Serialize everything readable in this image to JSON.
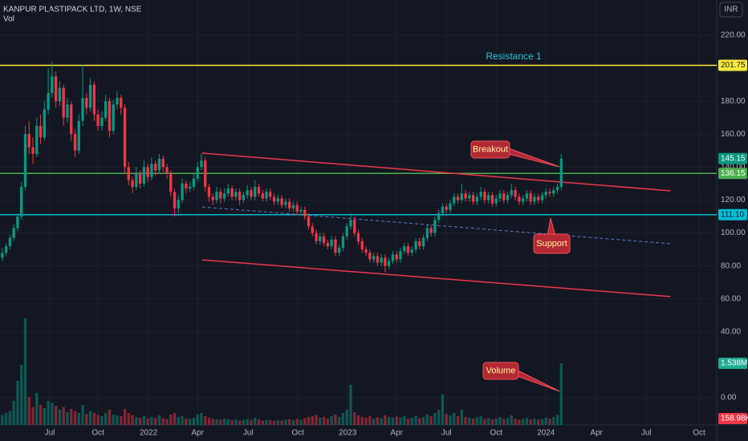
{
  "header": {
    "symbol": "KANPUR PLASTIPACK LTD, 1W, NSE",
    "indicator": "Vol",
    "currency": "INR"
  },
  "chart_data": {
    "type": "candlestick",
    "up_color": "#089981",
    "down_color": "#f23645",
    "ohlc": [
      [
        85,
        91,
        83,
        88
      ],
      [
        88,
        94,
        86,
        92
      ],
      [
        92,
        99,
        90,
        97
      ],
      [
        97,
        105,
        95,
        103
      ],
      [
        103,
        112,
        101,
        110
      ],
      [
        110,
        131,
        108,
        128
      ],
      [
        128,
        165,
        126,
        160
      ],
      [
        160,
        168,
        148,
        152
      ],
      [
        152,
        158,
        142,
        148
      ],
      [
        148,
        170,
        146,
        165
      ],
      [
        165,
        172,
        154,
        158
      ],
      [
        158,
        180,
        156,
        175
      ],
      [
        175,
        200,
        172,
        185
      ],
      [
        185,
        204,
        182,
        195
      ],
      [
        195,
        198,
        176,
        180
      ],
      [
        180,
        192,
        177,
        188
      ],
      [
        188,
        190,
        165,
        170
      ],
      [
        170,
        182,
        167,
        178
      ],
      [
        178,
        180,
        156,
        160
      ],
      [
        160,
        163,
        146,
        150
      ],
      [
        150,
        172,
        148,
        168
      ],
      [
        168,
        202,
        165,
        182
      ],
      [
        182,
        185,
        172,
        176
      ],
      [
        176,
        194,
        174,
        190
      ],
      [
        190,
        192,
        168,
        172
      ],
      [
        172,
        175,
        162,
        165
      ],
      [
        165,
        174,
        162,
        170
      ],
      [
        170,
        184,
        168,
        180
      ],
      [
        180,
        182,
        158,
        162
      ],
      [
        162,
        181,
        160,
        178
      ],
      [
        178,
        186,
        175,
        182
      ],
      [
        182,
        184,
        172,
        176
      ],
      [
        176,
        178,
        136,
        140
      ],
      [
        140,
        143,
        129,
        132
      ],
      [
        132,
        134,
        124,
        128
      ],
      [
        128,
        140,
        126,
        136
      ],
      [
        136,
        138,
        127,
        130
      ],
      [
        130,
        144,
        128,
        140
      ],
      [
        140,
        142,
        131,
        134
      ],
      [
        134,
        146,
        132,
        142
      ],
      [
        142,
        144,
        135,
        138
      ],
      [
        138,
        148,
        136,
        145
      ],
      [
        145,
        147,
        137,
        140
      ],
      [
        140,
        142,
        133,
        136
      ],
      [
        136,
        138,
        122,
        125
      ],
      [
        125,
        127,
        110,
        115
      ],
      [
        115,
        123,
        112,
        120
      ],
      [
        120,
        133,
        118,
        130
      ],
      [
        130,
        132,
        124,
        127
      ],
      [
        127,
        131,
        125,
        128
      ],
      [
        128,
        136,
        126,
        133
      ],
      [
        133,
        143,
        131,
        140
      ],
      [
        140,
        148,
        138,
        144
      ],
      [
        144,
        146,
        125,
        128
      ],
      [
        128,
        130,
        119,
        122
      ],
      [
        122,
        124,
        117,
        120
      ],
      [
        120,
        128,
        118,
        125
      ],
      [
        125,
        127,
        118,
        121
      ],
      [
        121,
        127,
        119,
        124
      ],
      [
        124,
        130,
        122,
        127
      ],
      [
        127,
        129,
        120,
        122
      ],
      [
        122,
        127,
        120,
        125
      ],
      [
        125,
        127,
        117,
        120
      ],
      [
        120,
        125,
        118,
        123
      ],
      [
        123,
        129,
        121,
        126
      ],
      [
        126,
        128,
        120,
        122
      ],
      [
        122,
        132,
        120,
        128
      ],
      [
        128,
        130,
        122,
        124
      ],
      [
        124,
        126,
        119,
        121
      ],
      [
        121,
        127,
        119,
        125
      ],
      [
        125,
        127,
        120,
        122
      ],
      [
        122,
        124,
        117,
        119
      ],
      [
        119,
        123,
        117,
        121
      ],
      [
        121,
        123,
        115,
        117
      ],
      [
        117,
        121,
        115,
        119
      ],
      [
        119,
        121,
        113,
        115
      ],
      [
        115,
        119,
        113,
        117
      ],
      [
        117,
        119,
        111,
        113
      ],
      [
        113,
        116,
        111,
        114
      ],
      [
        114,
        116,
        108,
        110
      ],
      [
        110,
        112,
        102,
        104
      ],
      [
        104,
        106,
        98,
        100
      ],
      [
        100,
        102,
        93,
        95
      ],
      [
        95,
        100,
        93,
        98
      ],
      [
        98,
        100,
        92,
        94
      ],
      [
        94,
        96,
        90,
        92
      ],
      [
        92,
        98,
        90,
        96
      ],
      [
        96,
        98,
        86,
        88
      ],
      [
        88,
        93,
        86,
        91
      ],
      [
        91,
        100,
        89,
        98
      ],
      [
        98,
        106,
        96,
        104
      ],
      [
        104,
        112,
        102,
        108
      ],
      [
        108,
        110,
        98,
        100
      ],
      [
        100,
        102,
        93,
        95
      ],
      [
        95,
        97,
        88,
        90
      ],
      [
        90,
        92,
        86,
        88
      ],
      [
        88,
        90,
        82,
        84
      ],
      [
        84,
        88,
        82,
        86
      ],
      [
        86,
        88,
        80,
        82
      ],
      [
        82,
        87,
        80,
        85
      ],
      [
        85,
        87,
        76,
        80
      ],
      [
        80,
        85,
        78,
        83
      ],
      [
        83,
        89,
        81,
        87
      ],
      [
        87,
        89,
        82,
        84
      ],
      [
        84,
        91,
        82,
        89
      ],
      [
        89,
        94,
        87,
        92
      ],
      [
        92,
        94,
        86,
        88
      ],
      [
        88,
        92,
        86,
        90
      ],
      [
        90,
        97,
        88,
        95
      ],
      [
        95,
        97,
        90,
        92
      ],
      [
        92,
        99,
        90,
        97
      ],
      [
        97,
        105,
        95,
        103
      ],
      [
        103,
        105,
        98,
        100
      ],
      [
        100,
        110,
        98,
        108
      ],
      [
        108,
        114,
        106,
        112
      ],
      [
        112,
        118,
        110,
        116
      ],
      [
        116,
        118,
        112,
        114
      ],
      [
        114,
        120,
        112,
        118
      ],
      [
        118,
        124,
        116,
        122
      ],
      [
        122,
        124,
        118,
        120
      ],
      [
        120,
        130,
        118,
        124
      ],
      [
        124,
        126,
        119,
        121
      ],
      [
        121,
        125,
        119,
        123
      ],
      [
        123,
        125,
        117,
        119
      ],
      [
        119,
        124,
        117,
        122
      ],
      [
        122,
        128,
        120,
        125
      ],
      [
        125,
        127,
        118,
        120
      ],
      [
        120,
        125,
        118,
        123
      ],
      [
        123,
        125,
        116,
        118
      ],
      [
        118,
        123,
        116,
        121
      ],
      [
        121,
        126,
        119,
        124
      ],
      [
        124,
        126,
        118,
        120
      ],
      [
        120,
        125,
        118,
        123
      ],
      [
        123,
        130,
        121,
        126
      ],
      [
        126,
        128,
        120,
        122
      ],
      [
        122,
        124,
        117,
        119
      ],
      [
        119,
        123,
        117,
        121
      ],
      [
        121,
        126,
        119,
        124
      ],
      [
        124,
        126,
        117,
        119
      ],
      [
        119,
        124,
        117,
        122
      ],
      [
        122,
        124,
        118,
        120
      ],
      [
        120,
        125,
        118,
        123
      ],
      [
        123,
        127,
        121,
        125
      ],
      [
        125,
        127,
        122,
        124
      ],
      [
        124,
        128,
        122,
        126
      ],
      [
        126,
        130,
        124,
        128
      ],
      [
        128,
        148,
        126,
        145.15
      ]
    ],
    "volume": [
      250000,
      300000,
      350000,
      600000,
      1100000,
      1500000,
      2660000,
      700000,
      450000,
      800000,
      500000,
      420000,
      600000,
      550000,
      480000,
      380000,
      450000,
      320000,
      400000,
      350000,
      300000,
      500000,
      280000,
      350000,
      300000,
      250000,
      220000,
      300000,
      380000,
      260000,
      240000,
      220000,
      400000,
      300000,
      250000,
      200000,
      180000,
      220000,
      160000,
      200000,
      180000,
      240000,
      170000,
      150000,
      260000,
      300000,
      200000,
      220000,
      160000,
      150000,
      180000,
      260000,
      300000,
      220000,
      180000,
      150000,
      140000,
      130000,
      160000,
      150000,
      120000,
      140000,
      110000,
      130000,
      150000,
      120000,
      180000,
      140000,
      110000,
      130000,
      120000,
      100000,
      120000,
      110000,
      130000,
      140000,
      120000,
      150000,
      130000,
      170000,
      200000,
      220000,
      250000,
      180000,
      200000,
      160000,
      220000,
      260000,
      200000,
      300000,
      380000,
      1000000,
      320000,
      240000,
      200000,
      180000,
      220000,
      160000,
      190000,
      170000,
      240000,
      200000,
      180000,
      210000,
      190000,
      220000,
      160000,
      180000,
      230000,
      170000,
      200000,
      260000,
      220000,
      300000,
      380000,
      760000,
      280000,
      240000,
      300000,
      220000,
      380000,
      200000,
      180000,
      160000,
      190000,
      220000,
      150000,
      170000,
      140000,
      160000,
      200000,
      150000,
      170000,
      240000,
      160000,
      130000,
      150000,
      180000,
      140000,
      160000,
      130000,
      150000,
      180000,
      160000,
      200000,
      250000,
      1538000
    ],
    "last_volume_label": "1.538M",
    "volume_ma": {
      "value": 158980,
      "label": "158.98K"
    },
    "volume_lim": [
      0,
      10600000
    ],
    "xlim": [
      -0.6,
      186.6
    ],
    "xticks": [
      {
        "value": 12.4,
        "label": "Jul"
      },
      {
        "value": 25,
        "label": "Oct"
      },
      {
        "value": 38.2,
        "label": "2022"
      },
      {
        "value": 51,
        "label": "Apr"
      },
      {
        "value": 64.2,
        "label": "Jul"
      },
      {
        "value": 77.2,
        "label": "Oct"
      },
      {
        "value": 90.2,
        "label": "2023"
      },
      {
        "value": 103,
        "label": "Apr"
      },
      {
        "value": 116,
        "label": "Jul"
      },
      {
        "value": 129,
        "label": "Oct"
      },
      {
        "value": 142,
        "label": "2024"
      },
      {
        "value": 155.2,
        "label": "Apr"
      },
      {
        "value": 168.2,
        "label": "Jul"
      },
      {
        "value": 182,
        "label": "Oct"
      }
    ],
    "ylim": [
      -16.5,
      241.4
    ],
    "yticks": [
      {
        "value": 220,
        "label": "220.00"
      },
      {
        "value": 180,
        "label": "180.00"
      },
      {
        "value": 160,
        "label": "160.00"
      },
      {
        "value": 140,
        "label": "140.00"
      },
      {
        "value": 120,
        "label": "120.00"
      },
      {
        "value": 100,
        "label": "100.00"
      },
      {
        "value": 80,
        "label": "80.00"
      },
      {
        "value": 60,
        "label": "60.00"
      },
      {
        "value": 40,
        "label": "40.00"
      },
      {
        "value": 0,
        "label": "0.00"
      }
    ],
    "grid": true,
    "levels": [
      {
        "value": 201.75,
        "label": "201.75",
        "color": "#ffeb3b"
      },
      {
        "value": 136.15,
        "label": "136.15",
        "color": "#4caf50"
      },
      {
        "value": 111.1,
        "label": "111.10",
        "color": "#00bcd4"
      }
    ],
    "trendlines": [
      {
        "x": [
          52.2,
          174.5
        ],
        "y": [
          148.5,
          125.6
        ],
        "color": "#f23645",
        "dashed": false
      },
      {
        "x": [
          52.2,
          174.5
        ],
        "y": [
          83.7,
          61.4
        ],
        "color": "#f23645",
        "dashed": false
      },
      {
        "x": [
          52.2,
          174.5
        ],
        "y": [
          115.8,
          93.5
        ],
        "color": "#5b7bd5",
        "dashed": true
      }
    ],
    "annotations": {
      "resistance": "Resistance 1",
      "breakout": "Breakout",
      "support": "Support",
      "volume": "Volume"
    }
  }
}
